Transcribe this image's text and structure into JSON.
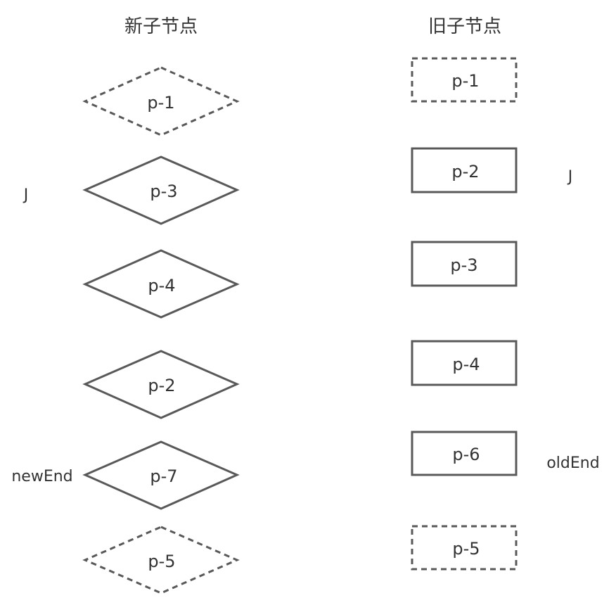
{
  "headers": {
    "new": "新子节点",
    "old": "旧子节点"
  },
  "new_nodes": [
    {
      "label": "p-1",
      "style": "dashed"
    },
    {
      "label": "p-3",
      "style": "solid"
    },
    {
      "label": "p-4",
      "style": "solid"
    },
    {
      "label": "p-2",
      "style": "solid"
    },
    {
      "label": "p-7",
      "style": "solid"
    },
    {
      "label": "p-5",
      "style": "dashed"
    }
  ],
  "old_nodes": [
    {
      "label": "p-1",
      "style": "dashed"
    },
    {
      "label": "p-2",
      "style": "solid"
    },
    {
      "label": "p-3",
      "style": "solid"
    },
    {
      "label": "p-4",
      "style": "solid"
    },
    {
      "label": "p-6",
      "style": "solid"
    },
    {
      "label": "p-5",
      "style": "dashed"
    }
  ],
  "pointers": {
    "new_start": "J",
    "old_start": "J",
    "new_end": "newEnd",
    "old_end": "oldEnd"
  },
  "colors": {
    "stroke": "#595959",
    "text": "#333333"
  }
}
